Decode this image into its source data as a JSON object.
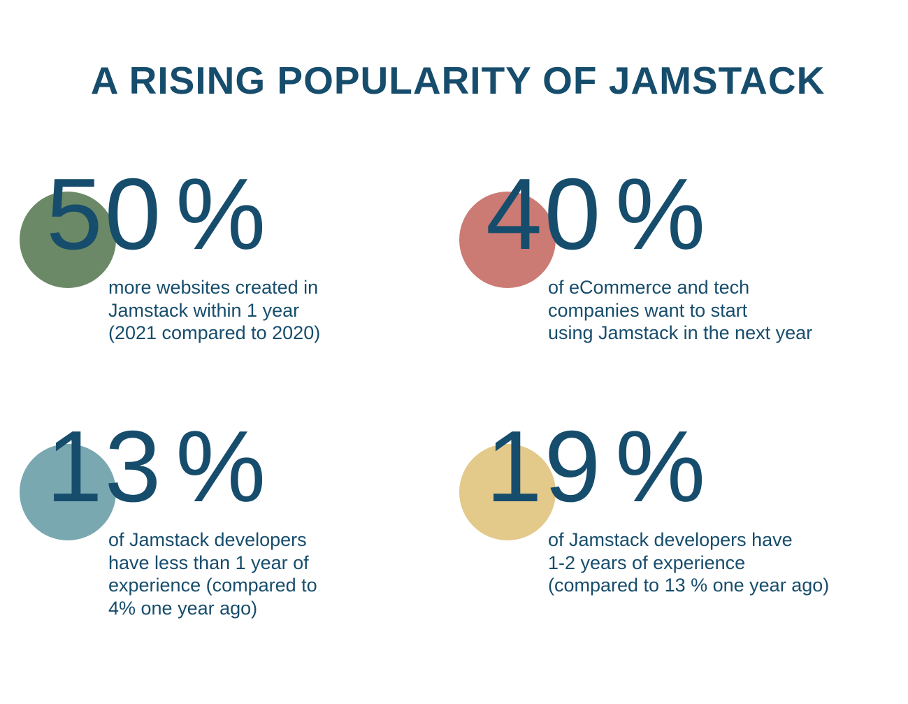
{
  "title": "A RISING POPULARITY OF JAMSTACK",
  "stats": [
    {
      "number": "50",
      "sign": "%",
      "circle_color": "#6b8966",
      "lines": [
        "more websites created in",
        "Jamstack within 1 year",
        "(2021 compared to 2020)"
      ]
    },
    {
      "number": "40",
      "sign": "%",
      "circle_color": "#cb7b73",
      "lines": [
        "of eCommerce and tech",
        "companies want to start",
        "using Jamstack in the next year"
      ]
    },
    {
      "number": "13",
      "sign": "%",
      "circle_color": "#79a8b0",
      "lines": [
        "of Jamstack developers",
        "have less than 1 year of",
        "experience (compared to",
        "4% one year ago)"
      ]
    },
    {
      "number": "19",
      "sign": "%",
      "circle_color": "#e3c98a",
      "lines": [
        "of Jamstack developers have",
        "1-2 years of experience",
        "(compared to 13 % one year ago)"
      ]
    }
  ]
}
